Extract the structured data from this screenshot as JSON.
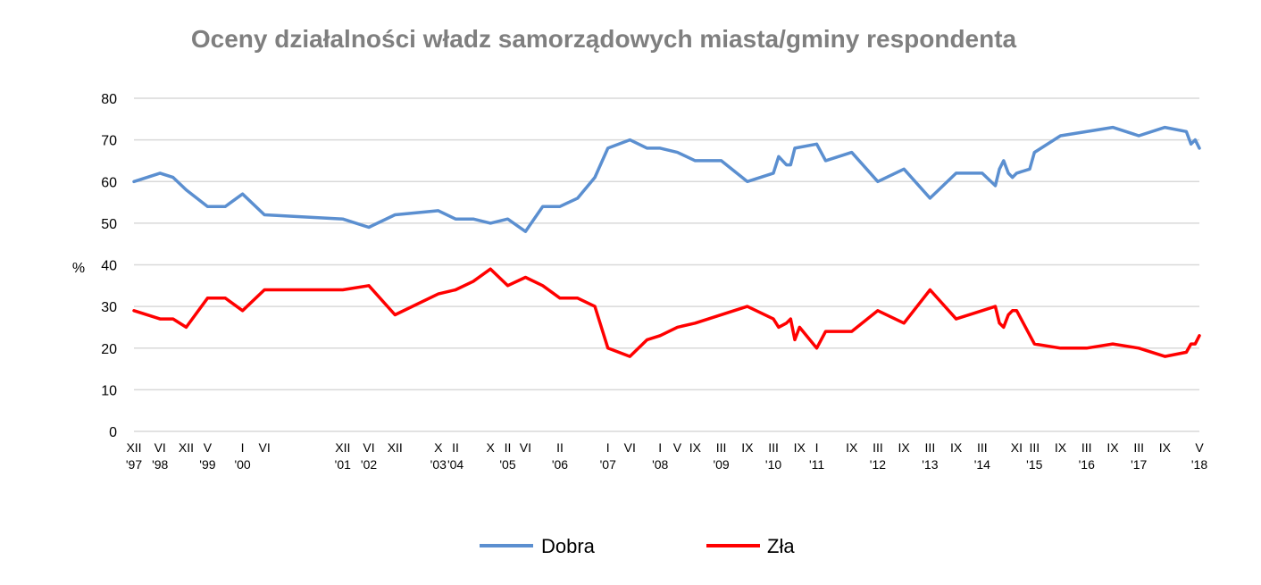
{
  "chart_data": {
    "type": "line",
    "title": "Oceny działalności władz samorządowych miasta/gminy respondenta",
    "ylabel": "%",
    "xlabel": "",
    "ylim": [
      0,
      80
    ],
    "y_ticks": [
      "0",
      "10",
      "20",
      "30",
      "40",
      "50",
      "60",
      "70",
      "80"
    ],
    "grid": true,
    "legend_position": "bottom",
    "x_labels": [
      {
        "x": 1997.92,
        "l1": "XII",
        "l2": "'97"
      },
      {
        "x": 1998.42,
        "l1": "VI",
        "l2": "'98"
      },
      {
        "x": 1998.92,
        "l1": "XII",
        "l2": ""
      },
      {
        "x": 1999.33,
        "l1": "V",
        "l2": "'99"
      },
      {
        "x": 2000.0,
        "l1": "I",
        "l2": "'00"
      },
      {
        "x": 2000.42,
        "l1": "VI",
        "l2": ""
      },
      {
        "x": 2001.92,
        "l1": "XII",
        "l2": "'01"
      },
      {
        "x": 2002.42,
        "l1": "VI",
        "l2": "'02"
      },
      {
        "x": 2002.92,
        "l1": "XII",
        "l2": ""
      },
      {
        "x": 2003.75,
        "l1": "X",
        "l2": "'03"
      },
      {
        "x": 2004.08,
        "l1": "II",
        "l2": "'04"
      },
      {
        "x": 2004.75,
        "l1": "X",
        "l2": ""
      },
      {
        "x": 2005.08,
        "l1": "II",
        "l2": "'05"
      },
      {
        "x": 2005.42,
        "l1": "VI",
        "l2": ""
      },
      {
        "x": 2006.08,
        "l1": "II",
        "l2": "'06"
      },
      {
        "x": 2007.0,
        "l1": "I",
        "l2": "'07"
      },
      {
        "x": 2007.42,
        "l1": "VI",
        "l2": ""
      },
      {
        "x": 2008.0,
        "l1": "I",
        "l2": "'08"
      },
      {
        "x": 2008.33,
        "l1": "V",
        "l2": ""
      },
      {
        "x": 2008.67,
        "l1": "IX",
        "l2": ""
      },
      {
        "x": 2009.17,
        "l1": "III",
        "l2": "'09"
      },
      {
        "x": 2009.67,
        "l1": "IX",
        "l2": ""
      },
      {
        "x": 2010.17,
        "l1": "III",
        "l2": "'10"
      },
      {
        "x": 2010.67,
        "l1": "IX",
        "l2": ""
      },
      {
        "x": 2011.0,
        "l1": "I",
        "l2": "'11"
      },
      {
        "x": 2011.67,
        "l1": "IX",
        "l2": ""
      },
      {
        "x": 2012.17,
        "l1": "III",
        "l2": "'12"
      },
      {
        "x": 2012.67,
        "l1": "IX",
        "l2": ""
      },
      {
        "x": 2013.17,
        "l1": "III",
        "l2": "'13"
      },
      {
        "x": 2013.67,
        "l1": "IX",
        "l2": ""
      },
      {
        "x": 2014.17,
        "l1": "III",
        "l2": "'14"
      },
      {
        "x": 2014.83,
        "l1": "XI",
        "l2": ""
      },
      {
        "x": 2015.17,
        "l1": "III",
        "l2": "'15"
      },
      {
        "x": 2015.67,
        "l1": "IX",
        "l2": ""
      },
      {
        "x": 2016.17,
        "l1": "III",
        "l2": "'16"
      },
      {
        "x": 2016.67,
        "l1": "IX",
        "l2": ""
      },
      {
        "x": 2017.17,
        "l1": "III",
        "l2": "'17"
      },
      {
        "x": 2017.67,
        "l1": "IX",
        "l2": ""
      },
      {
        "x": 2018.33,
        "l1": "V",
        "l2": "'18"
      }
    ],
    "series": [
      {
        "name": "Dobra",
        "color": "#5b8fd0",
        "points": [
          [
            1997.92,
            60
          ],
          [
            1998.42,
            62
          ],
          [
            1998.67,
            61
          ],
          [
            1998.92,
            58
          ],
          [
            1999.33,
            54
          ],
          [
            1999.67,
            54
          ],
          [
            2000.0,
            57
          ],
          [
            2000.42,
            52
          ],
          [
            2001.92,
            51
          ],
          [
            2002.42,
            49
          ],
          [
            2002.92,
            52
          ],
          [
            2003.75,
            53
          ],
          [
            2004.08,
            51
          ],
          [
            2004.42,
            51
          ],
          [
            2004.75,
            50
          ],
          [
            2005.08,
            51
          ],
          [
            2005.42,
            48
          ],
          [
            2005.75,
            54
          ],
          [
            2006.08,
            54
          ],
          [
            2006.42,
            56
          ],
          [
            2006.75,
            61
          ],
          [
            2007.0,
            68
          ],
          [
            2007.42,
            70
          ],
          [
            2007.75,
            68
          ],
          [
            2008.0,
            68
          ],
          [
            2008.33,
            67
          ],
          [
            2008.67,
            65
          ],
          [
            2009.17,
            65
          ],
          [
            2009.67,
            60
          ],
          [
            2010.17,
            62
          ],
          [
            2010.27,
            66
          ],
          [
            2010.42,
            64
          ],
          [
            2010.5,
            64
          ],
          [
            2010.58,
            68
          ],
          [
            2011.0,
            69
          ],
          [
            2011.17,
            65
          ],
          [
            2011.67,
            67
          ],
          [
            2012.17,
            60
          ],
          [
            2012.67,
            63
          ],
          [
            2013.17,
            56
          ],
          [
            2013.67,
            62
          ],
          [
            2014.17,
            62
          ],
          [
            2014.42,
            59
          ],
          [
            2014.5,
            63
          ],
          [
            2014.58,
            65
          ],
          [
            2014.67,
            62
          ],
          [
            2014.75,
            61
          ],
          [
            2014.83,
            62
          ],
          [
            2015.08,
            63
          ],
          [
            2015.17,
            67
          ],
          [
            2015.67,
            71
          ],
          [
            2016.67,
            73
          ],
          [
            2017.17,
            71
          ],
          [
            2017.67,
            73
          ],
          [
            2018.08,
            72
          ],
          [
            2018.17,
            69
          ],
          [
            2018.25,
            70
          ],
          [
            2018.33,
            68
          ]
        ]
      },
      {
        "name": "Zła",
        "color": "#ff0000",
        "points": [
          [
            1997.92,
            29
          ],
          [
            1998.42,
            27
          ],
          [
            1998.67,
            27
          ],
          [
            1998.92,
            25
          ],
          [
            1999.33,
            32
          ],
          [
            1999.67,
            32
          ],
          [
            2000.0,
            29
          ],
          [
            2000.42,
            34
          ],
          [
            2001.92,
            34
          ],
          [
            2002.42,
            35
          ],
          [
            2002.92,
            28
          ],
          [
            2003.75,
            33
          ],
          [
            2004.08,
            34
          ],
          [
            2004.42,
            36
          ],
          [
            2004.75,
            39
          ],
          [
            2005.08,
            35
          ],
          [
            2005.42,
            37
          ],
          [
            2005.75,
            35
          ],
          [
            2006.08,
            32
          ],
          [
            2006.42,
            32
          ],
          [
            2006.75,
            30
          ],
          [
            2007.0,
            20
          ],
          [
            2007.42,
            18
          ],
          [
            2007.75,
            22
          ],
          [
            2008.0,
            23
          ],
          [
            2008.33,
            25
          ],
          [
            2008.67,
            26
          ],
          [
            2009.67,
            30
          ],
          [
            2010.17,
            27
          ],
          [
            2010.27,
            25
          ],
          [
            2010.42,
            26
          ],
          [
            2010.5,
            27
          ],
          [
            2010.58,
            22
          ],
          [
            2010.67,
            25
          ],
          [
            2011.0,
            20
          ],
          [
            2011.17,
            24
          ],
          [
            2011.67,
            24
          ],
          [
            2012.17,
            29
          ],
          [
            2012.67,
            26
          ],
          [
            2013.17,
            34
          ],
          [
            2013.67,
            27
          ],
          [
            2014.17,
            29
          ],
          [
            2014.42,
            30
          ],
          [
            2014.5,
            26
          ],
          [
            2014.58,
            25
          ],
          [
            2014.67,
            28
          ],
          [
            2014.75,
            29
          ],
          [
            2014.83,
            29
          ],
          [
            2015.17,
            21
          ],
          [
            2015.67,
            20
          ],
          [
            2016.17,
            20
          ],
          [
            2016.67,
            21
          ],
          [
            2017.17,
            20
          ],
          [
            2017.67,
            18
          ],
          [
            2018.08,
            19
          ],
          [
            2018.17,
            21
          ],
          [
            2018.25,
            21
          ],
          [
            2018.33,
            23
          ]
        ]
      }
    ]
  }
}
